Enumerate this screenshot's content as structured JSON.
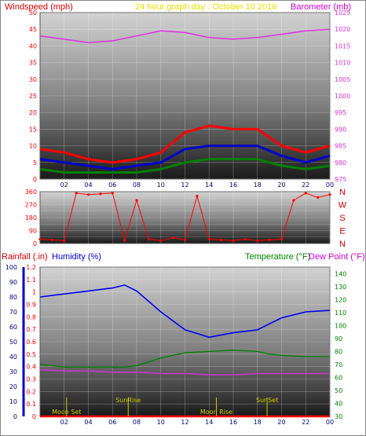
{
  "header": {
    "wind_title": "Windspeed (mph)",
    "graph_title": "24 hour graph day : October 10 2016",
    "baro_title": "Barometer (mb)",
    "rain_title": "Rainfall (.in)",
    "humidity_title": "Humidity (%)",
    "temp_title": "Temperature (°F)",
    "dew_title": "Dew Point (°F)"
  },
  "colors": {
    "wind_gust": "#ff0000",
    "wind_speed": "#0000cc",
    "wind_avg": "#008000",
    "barometer": "#e030e0",
    "direction": "#ff0000",
    "humidity": "#0000ee",
    "temperature": "#008000",
    "dew_point": "#cc33cc",
    "rain": "#ff0000",
    "event": "#cccc00"
  },
  "chart_data": [
    {
      "type": "line",
      "title": "24 hour graph day : October 10 2016",
      "xlabel": "",
      "ylabel": "Windspeed (mph)",
      "y2label": "Barometer (mb)",
      "x_ticks": [
        "02",
        "04",
        "06",
        "08",
        "10",
        "12",
        "14",
        "16",
        "18",
        "20",
        "22",
        "00"
      ],
      "ylim": [
        0,
        50
      ],
      "y_ticks": [
        0,
        5,
        10,
        15,
        20,
        25,
        30,
        35,
        40,
        45,
        50
      ],
      "y2lim": [
        975,
        1025
      ],
      "y2_ticks": [
        975,
        980,
        985,
        990,
        995,
        1000,
        1005,
        1010,
        1015,
        1020,
        1025
      ],
      "x": [
        0,
        2,
        4,
        6,
        8,
        10,
        12,
        14,
        16,
        18,
        20,
        22,
        24
      ],
      "series": [
        {
          "name": "Windspeed (mph)",
          "values": [
            9,
            8,
            6,
            5,
            6,
            8,
            14,
            16,
            15,
            15,
            10,
            8,
            10
          ]
        },
        {
          "name": "",
          "values": [
            6,
            5,
            4,
            3,
            4,
            5,
            9,
            10,
            10,
            10,
            7,
            5,
            7
          ]
        },
        {
          "name": "",
          "values": [
            3,
            2,
            2,
            2,
            2,
            3,
            5,
            6,
            6,
            6,
            4,
            3,
            4
          ]
        },
        {
          "name": "Barometer (mb)",
          "values": [
            1018,
            1017,
            1016,
            1016.5,
            1018,
            1019.5,
            1019,
            1017.5,
            1017,
            1017.5,
            1018.5,
            1019.5,
            1020
          ]
        }
      ]
    },
    {
      "type": "scatter",
      "title": "",
      "xlabel": "",
      "ylabel": "",
      "ylim": [
        0,
        360
      ],
      "y_ticks": [
        0,
        45,
        90,
        135,
        180,
        225,
        270,
        315,
        360
      ],
      "right_labels": [
        "N",
        "W",
        "S",
        "E",
        "N"
      ],
      "x": [
        0,
        1,
        2,
        3,
        4,
        5,
        6,
        7,
        8,
        9,
        10,
        11,
        12,
        13,
        14,
        15,
        16,
        17,
        18,
        19,
        20,
        21,
        22,
        23,
        24
      ],
      "values": [
        30,
        25,
        20,
        350,
        340,
        345,
        350,
        20,
        300,
        30,
        20,
        40,
        25,
        330,
        30,
        25,
        20,
        30,
        20,
        25,
        30,
        300,
        350,
        320,
        340
      ]
    },
    {
      "type": "line",
      "title": "",
      "xlabel": "",
      "ylabel": "Rainfall (.in)",
      "y_ticks_rain": [
        0,
        0.1,
        0.2,
        0.3,
        0.4,
        0.5,
        0.6,
        0.7,
        0.8,
        0.9,
        1,
        1.1,
        1.2
      ],
      "ylim_rain": [
        0,
        1.2
      ],
      "ylabel2": "Humidity (%)",
      "y_ticks_humidity": [
        0,
        10,
        20,
        30,
        40,
        50,
        60,
        70,
        80,
        90,
        100
      ],
      "ylim_humidity": [
        0,
        100
      ],
      "y2label": "Temperature (°F)",
      "y3label": "Dew Point (°F)",
      "y2_ticks": [
        30,
        40,
        50,
        60,
        70,
        80,
        90,
        100,
        110,
        120,
        130,
        140
      ],
      "y2lim": [
        30,
        145
      ],
      "x_ticks": [
        "02",
        "04",
        "06",
        "08",
        "10",
        "12",
        "14",
        "16",
        "18",
        "20",
        "22",
        "00"
      ],
      "x": [
        0,
        2,
        4,
        6,
        7,
        8,
        10,
        12,
        14,
        16,
        18,
        19,
        20,
        22,
        24
      ],
      "series": [
        {
          "name": "Humidity (%)",
          "values": [
            80,
            82,
            84,
            86,
            88,
            84,
            70,
            58,
            53,
            56,
            58,
            62,
            66,
            70,
            71
          ]
        },
        {
          "name": "Temperature (°F)",
          "values": [
            70,
            68,
            68,
            68,
            68,
            69,
            75,
            79,
            80,
            81,
            80,
            78,
            77,
            76,
            76
          ]
        },
        {
          "name": "Dew Point (°F)",
          "values": [
            66,
            65,
            65,
            64,
            64,
            64,
            63,
            63,
            62,
            62,
            63,
            63,
            63,
            63,
            63
          ]
        },
        {
          "name": "Rainfall (.in)",
          "values": [
            0,
            0,
            0,
            0,
            0,
            0,
            0,
            0,
            0,
            0,
            0,
            0,
            0,
            0,
            0
          ]
        }
      ],
      "events": [
        {
          "label": "Moon Set",
          "x": 2.2
        },
        {
          "label": "SunRise",
          "x": 7.3
        },
        {
          "label": "Moon Rise",
          "x": 14.6
        },
        {
          "label": "SunSet",
          "x": 18.8
        }
      ]
    }
  ]
}
